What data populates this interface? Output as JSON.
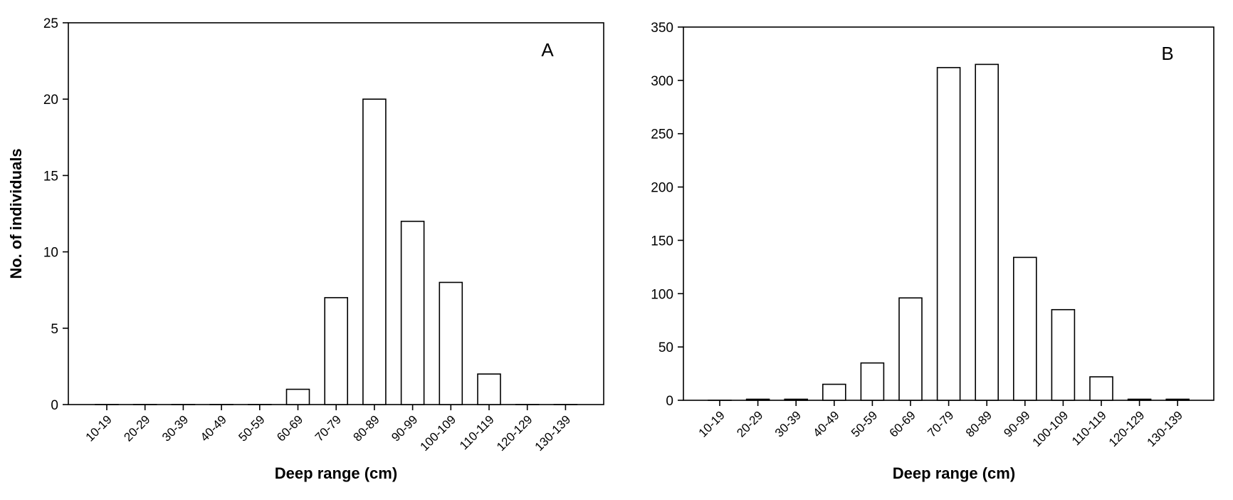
{
  "chart_data": [
    {
      "type": "bar",
      "panel_label": "A",
      "categories": [
        "10-19",
        "20-29",
        "30-39",
        "40-49",
        "50-59",
        "60-69",
        "70-79",
        "80-89",
        "90-99",
        "100-109",
        "110-119",
        "120-129",
        "130-139"
      ],
      "values": [
        0,
        0,
        0,
        0,
        0,
        1,
        7,
        20,
        12,
        8,
        2,
        0,
        0
      ],
      "xlabel": "Deep range (cm)",
      "ylabel": "No. of individuals",
      "ylim": [
        0,
        25
      ],
      "yticks": [
        0,
        5,
        10,
        15,
        20,
        25
      ],
      "grid": false,
      "bar_color": "#ffffff",
      "edge_color": "#000000"
    },
    {
      "type": "bar",
      "panel_label": "B",
      "categories": [
        "10-19",
        "20-29",
        "30-39",
        "40-49",
        "50-59",
        "60-69",
        "70-79",
        "80-89",
        "90-99",
        "100-109",
        "110-119",
        "120-129",
        "130-139"
      ],
      "values": [
        0,
        1,
        1,
        15,
        35,
        96,
        312,
        315,
        134,
        85,
        22,
        1,
        1
      ],
      "xlabel": "Deep range (cm)",
      "ylabel": "",
      "ylim": [
        0,
        350
      ],
      "yticks": [
        0,
        50,
        100,
        150,
        200,
        250,
        300,
        350
      ],
      "grid": false,
      "bar_color": "#ffffff",
      "edge_color": "#000000"
    }
  ]
}
